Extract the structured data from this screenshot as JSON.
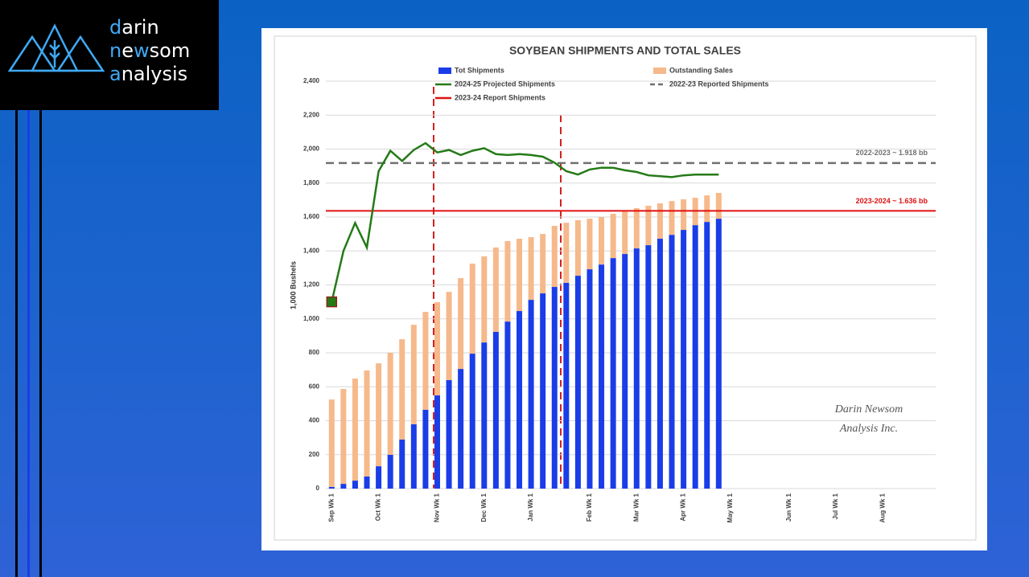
{
  "logo": {
    "lines": [
      [
        "d",
        "arin"
      ],
      [
        "n",
        "e",
        "w",
        "som"
      ],
      [
        "a",
        "nalysis"
      ]
    ]
  },
  "watermark": [
    "Darin Newsom",
    "Analysis Inc."
  ],
  "chart_data": {
    "type": "bar",
    "title": "SOYBEAN SHIPMENTS AND TOTAL SALES",
    "y_label": "1,000 Bushels",
    "stacked": true,
    "grid": true,
    "categories": [
      "Sep Wk 1",
      null,
      null,
      null,
      "Oct Wk 1",
      null,
      null,
      null,
      null,
      "Nov Wk 1",
      null,
      null,
      null,
      "Dec Wk 1",
      null,
      null,
      null,
      "Jan Wk 1",
      null,
      null,
      null,
      null,
      "Feb Wk 1",
      null,
      null,
      null,
      "Mar Wk 1",
      null,
      null,
      null,
      "Apr Wk 1",
      null,
      null,
      null,
      "May Wk 1",
      null,
      null,
      null,
      null,
      "Jun Wk 1",
      null,
      null,
      null,
      "Jul Wk 1",
      null,
      null,
      null,
      "Aug Wk 1",
      null,
      null,
      null,
      null
    ],
    "series": [
      {
        "name": "Tot Shipments",
        "type": "bar",
        "color": "#1a3de8",
        "values": [
          10,
          28,
          47,
          71,
          132,
          199,
          289,
          379,
          464,
          549,
          639,
          705,
          795,
          861,
          923,
          984,
          1046,
          1112,
          1150,
          1188,
          1212,
          1254,
          1292,
          1320,
          1358,
          1382,
          1415,
          1434,
          1472,
          1495,
          1524,
          1552,
          1571,
          1590,
          null,
          null,
          null,
          null,
          null,
          null,
          null,
          null,
          null,
          null,
          null,
          null,
          null,
          null,
          null,
          null,
          null,
          null
        ]
      },
      {
        "name": "Outstanding Sales",
        "type": "bar",
        "color": "#f6b98b",
        "values": [
          515,
          559,
          601,
          625,
          606,
          601,
          591,
          586,
          577,
          549,
          520,
          535,
          530,
          507,
          497,
          474,
          426,
          369,
          350,
          360,
          354,
          327,
          298,
          280,
          261,
          251,
          237,
          232,
          208,
          199,
          180,
          161,
          156,
          152,
          null,
          null,
          null,
          null,
          null,
          null,
          null,
          null,
          null,
          null,
          null,
          null,
          null,
          null,
          null,
          null,
          null,
          null
        ]
      },
      {
        "name": "2024-25 Projected Shipments",
        "type": "line",
        "color": "#247a17",
        "values": [
          1100,
          1400,
          1565,
          1420,
          1870,
          1990,
          1930,
          1995,
          2035,
          1980,
          1995,
          1965,
          1990,
          2005,
          1970,
          1965,
          1970,
          1965,
          1955,
          1920,
          1870,
          1850,
          1880,
          1890,
          1890,
          1875,
          1865,
          1845,
          1840,
          1835,
          1845,
          1850,
          1850,
          1850,
          null,
          null,
          null,
          null,
          null,
          null,
          null,
          null,
          null,
          null,
          null,
          null,
          null,
          null,
          null,
          null,
          null,
          null
        ]
      }
    ],
    "reference_lines": [
      {
        "name": "2022-23 Reported Shipments",
        "value": 1918,
        "label": "2022-2023 ~ 1.918 bb",
        "color": "#707070",
        "dashed": true
      },
      {
        "name": "2023-24 Report Shipments",
        "value": 1636,
        "label": "2023-2024 ~ 1.636 bb",
        "color": "#e01010",
        "dashed": false
      }
    ],
    "ylim": [
      0,
      2400
    ],
    "yticks": [
      0,
      200,
      400,
      600,
      800,
      {
        "value": 1000,
        "label": "1,000"
      },
      {
        "value": 1200,
        "label": "1,200"
      },
      {
        "value": 1400,
        "label": "1,400"
      },
      {
        "value": 1600,
        "label": "1,600"
      },
      {
        "value": 1800,
        "label": "1,800"
      },
      {
        "value": 2000,
        "label": "2,000"
      },
      {
        "value": 2200,
        "label": "2,200"
      },
      {
        "value": 2400,
        "label": "2,400"
      }
    ]
  }
}
